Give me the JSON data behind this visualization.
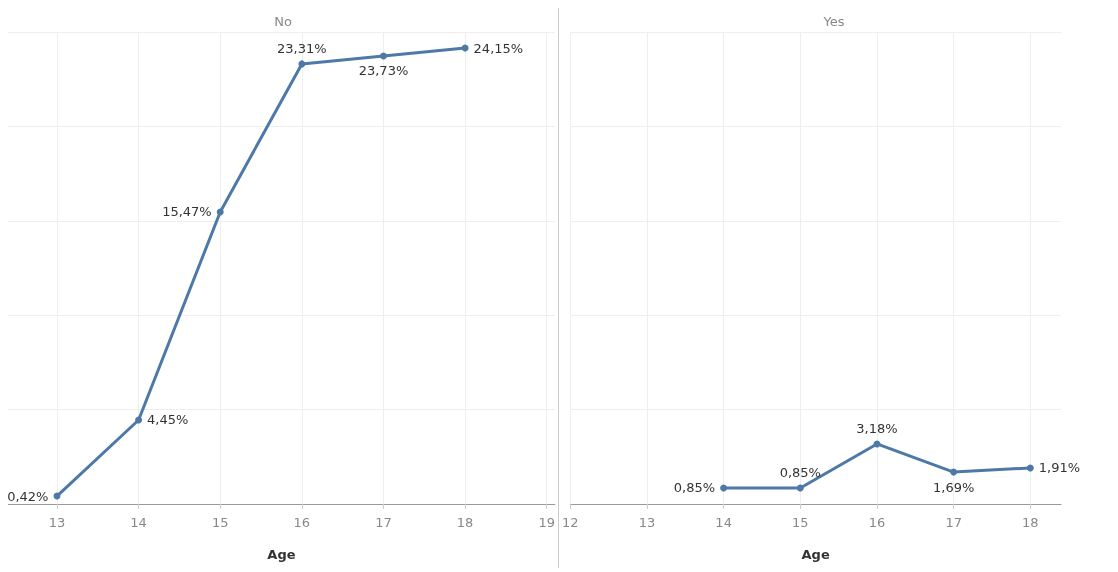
{
  "chart_data": [
    {
      "type": "line",
      "title": "No",
      "xlabel": "Age",
      "x": [
        13,
        14,
        15,
        16,
        17,
        18
      ],
      "xlim": [
        12.4,
        19.1
      ],
      "xticks": [
        13,
        14,
        15,
        16,
        17,
        18,
        19
      ],
      "ylim": [
        0,
        25
      ],
      "yticks": [
        0,
        5,
        10,
        15,
        20,
        25
      ],
      "tick_labels": "x",
      "grid": true,
      "marker": "circle",
      "line_style": "solid",
      "series": [
        {
          "color": "#4e79a7",
          "values": [
            0.42,
            4.45,
            15.47,
            23.31,
            23.73,
            24.15
          ],
          "value_labels": [
            "0,42%",
            "4,45%",
            "15,47%",
            "23,31%",
            "23,73%",
            "24,15%"
          ]
        }
      ]
    },
    {
      "type": "line",
      "title": "Yes",
      "xlabel": "Age",
      "x": [
        14,
        15,
        16,
        17,
        18
      ],
      "xlim": [
        12,
        18.4
      ],
      "xticks": [
        12,
        13,
        14,
        15,
        16,
        17,
        18
      ],
      "ylim": [
        0,
        25
      ],
      "yticks": [
        0,
        5,
        10,
        15,
        20,
        25
      ],
      "tick_labels": "x",
      "grid": true,
      "marker": "circle",
      "line_style": "solid",
      "series": [
        {
          "color": "#4e79a7",
          "values": [
            0.85,
            0.85,
            3.18,
            1.69,
            1.91
          ],
          "value_labels": [
            "0,85%",
            "0,85%",
            "3,18%",
            "1,69%",
            "1,91%"
          ]
        }
      ]
    }
  ]
}
